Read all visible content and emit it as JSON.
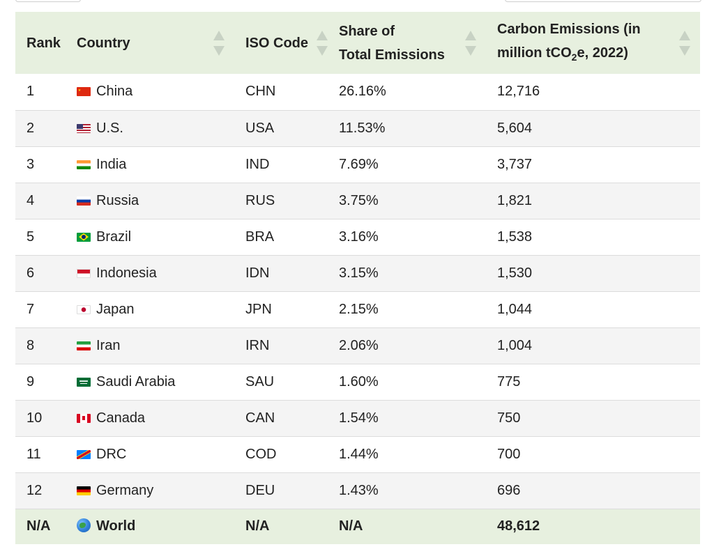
{
  "header": {
    "rank": "Rank",
    "country": "Country",
    "iso": "ISO Code",
    "share_line1": "Share of",
    "share_line2": "Total Emissions",
    "emis_line1": "Carbon Emissions (in",
    "emis_line2_a": "million tCO",
    "emis_line2_sub": "2",
    "emis_line2_b": "e, 2022)"
  },
  "rows": [
    {
      "rank": "1",
      "flag": "flag-cn",
      "country": "China",
      "iso": "CHN",
      "share": "26.16%",
      "emissions": "12,716"
    },
    {
      "rank": "2",
      "flag": "flag-us",
      "country": "U.S.",
      "iso": "USA",
      "share": "11.53%",
      "emissions": "5,604"
    },
    {
      "rank": "3",
      "flag": "flag-in",
      "country": "India",
      "iso": "IND",
      "share": "7.69%",
      "emissions": "3,737"
    },
    {
      "rank": "4",
      "flag": "flag-ru",
      "country": "Russia",
      "iso": "RUS",
      "share": "3.75%",
      "emissions": "1,821"
    },
    {
      "rank": "5",
      "flag": "flag-br",
      "country": "Brazil",
      "iso": "BRA",
      "share": "3.16%",
      "emissions": "1,538"
    },
    {
      "rank": "6",
      "flag": "flag-id",
      "country": "Indonesia",
      "iso": "IDN",
      "share": "3.15%",
      "emissions": "1,530"
    },
    {
      "rank": "7",
      "flag": "flag-jp",
      "country": "Japan",
      "iso": "JPN",
      "share": "2.15%",
      "emissions": "1,044"
    },
    {
      "rank": "8",
      "flag": "flag-ir",
      "country": "Iran",
      "iso": "IRN",
      "share": "2.06%",
      "emissions": "1,004"
    },
    {
      "rank": "9",
      "flag": "flag-sa",
      "country": "Saudi Arabia",
      "iso": "SAU",
      "share": "1.60%",
      "emissions": "775"
    },
    {
      "rank": "10",
      "flag": "flag-ca",
      "country": "Canada",
      "iso": "CAN",
      "share": "1.54%",
      "emissions": "750"
    },
    {
      "rank": "11",
      "flag": "flag-cd",
      "country": "DRC",
      "iso": "COD",
      "share": "1.44%",
      "emissions": "700"
    },
    {
      "rank": "12",
      "flag": "flag-de",
      "country": "Germany",
      "iso": "DEU",
      "share": "1.43%",
      "emissions": "696"
    }
  ],
  "total": {
    "rank": "N/A",
    "icon": "globe-icon",
    "country": "World",
    "iso": "N/A",
    "share": "N/A",
    "emissions": "48,612"
  },
  "colors": {
    "header_bg": "#e7f0df",
    "sort_arrow": "#c8d2c4",
    "row_alt": "#f4f4f4"
  }
}
